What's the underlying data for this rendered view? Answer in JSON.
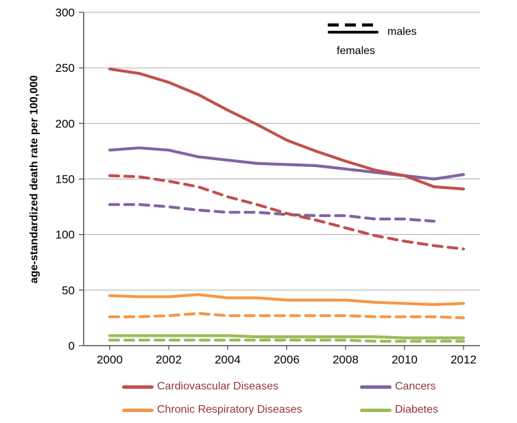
{
  "chart_data": {
    "type": "line",
    "title": "",
    "ylabel": "age-standardized death rate per 100,000",
    "xlabel": "",
    "ylim": [
      0,
      300
    ],
    "yticks": [
      0,
      50,
      100,
      150,
      200,
      250,
      300
    ],
    "xticks": [
      2000,
      2002,
      2004,
      2006,
      2008,
      2010,
      2012
    ],
    "x": [
      2000,
      2001,
      2002,
      2003,
      2004,
      2005,
      2006,
      2007,
      2008,
      2009,
      2010,
      2011,
      2012
    ],
    "grid": "horizontal",
    "legend_position": "top-right-inside and bottom",
    "legend_text_color": "#943634",
    "sex_legend": [
      {
        "label": "males",
        "style": "solid"
      },
      {
        "label": "females",
        "style": "dashed"
      }
    ],
    "series": [
      {
        "name": "Cancers",
        "sex": "males",
        "style": "solid",
        "color": "#8064A2",
        "values": [
          176,
          178,
          176,
          170,
          167,
          164,
          163,
          162,
          159,
          156,
          153,
          150,
          154
        ]
      },
      {
        "name": "Cancers",
        "sex": "females",
        "style": "dashed",
        "color": "#8064A2",
        "values": [
          127,
          127,
          125,
          122,
          120,
          120,
          118,
          117,
          117,
          114,
          114,
          112,
          null
        ]
      },
      {
        "name": "Cardiovascular Diseases",
        "sex": "males",
        "style": "solid",
        "color": "#C0504D",
        "values": [
          249,
          245,
          237,
          226,
          212,
          199,
          185,
          175,
          166,
          158,
          153,
          143,
          141
        ]
      },
      {
        "name": "Cardiovascular Diseases",
        "sex": "females",
        "style": "dashed",
        "color": "#C0504D",
        "values": [
          153,
          152,
          148,
          143,
          134,
          127,
          119,
          113,
          106,
          99,
          94,
          90,
          87
        ]
      },
      {
        "name": "Chronic Respiratory Diseases",
        "sex": "males",
        "style": "solid",
        "color": "#F79646",
        "values": [
          45,
          44,
          44,
          46,
          43,
          43,
          41,
          41,
          41,
          39,
          38,
          37,
          38
        ]
      },
      {
        "name": "Chronic Respiratory Diseases",
        "sex": "females",
        "style": "dashed",
        "color": "#F79646",
        "values": [
          26,
          26,
          27,
          29,
          27,
          27,
          27,
          27,
          27,
          26,
          26,
          26,
          25
        ]
      },
      {
        "name": "Diabetes",
        "sex": "males",
        "style": "solid",
        "color": "#9BBB59",
        "values": [
          9,
          9,
          9,
          9,
          9,
          8,
          8,
          8,
          8,
          8,
          7,
          7,
          7
        ]
      },
      {
        "name": "Diabetes",
        "sex": "females",
        "style": "dashed",
        "color": "#9BBB59",
        "values": [
          5,
          5,
          5,
          5,
          5,
          5,
          5,
          5,
          5,
          4,
          4,
          4,
          4
        ]
      }
    ],
    "category_legend": [
      {
        "label": "Cardiovascular Diseases",
        "color": "#C0504D"
      },
      {
        "label": "Cancers",
        "color": "#8064A2"
      },
      {
        "label": "Chronic Respiratory Diseases",
        "color": "#F79646"
      },
      {
        "label": "Diabetes",
        "color": "#9BBB59"
      }
    ]
  }
}
